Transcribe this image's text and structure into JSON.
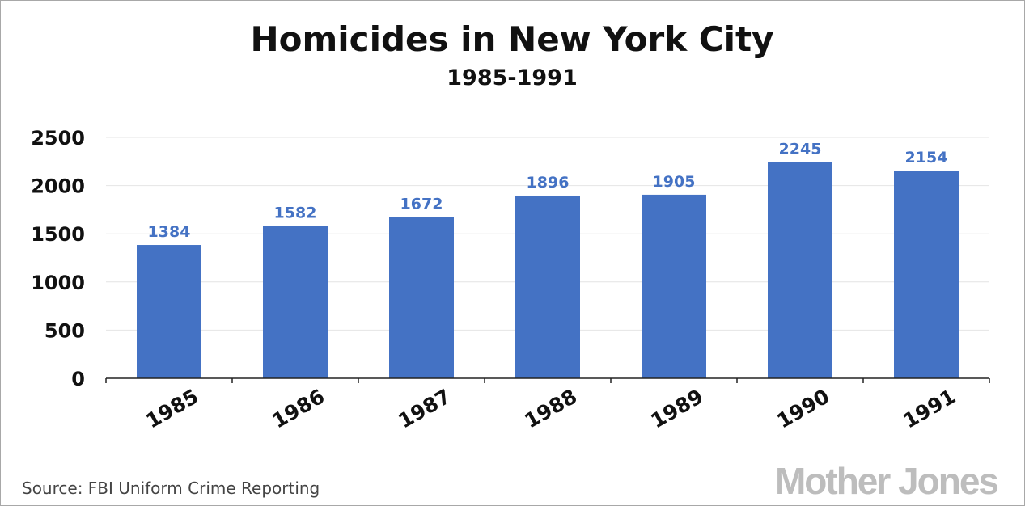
{
  "chart_data": {
    "type": "bar",
    "title": "Homicides in New York City",
    "subtitle": "1985-1991",
    "categories": [
      "1985",
      "1986",
      "1987",
      "1988",
      "1989",
      "1990",
      "1991"
    ],
    "values": [
      1384,
      1582,
      1672,
      1896,
      1905,
      2245,
      2154
    ],
    "data_labels": [
      "1384",
      "1582",
      "1672",
      "1896",
      "1905",
      "2245",
      "2154"
    ],
    "y_ticks": [
      "0",
      "500",
      "1000",
      "1500",
      "2000",
      "2500"
    ],
    "ylim": [
      0,
      2500
    ],
    "grid": true,
    "legend": "none",
    "xlabel": "",
    "ylabel": ""
  },
  "colors": {
    "bar": "#4472c4",
    "data_label": "#4472c4"
  },
  "footer": {
    "source": "Source: FBI Uniform Crime Reporting",
    "logo": "Mother Jones"
  }
}
